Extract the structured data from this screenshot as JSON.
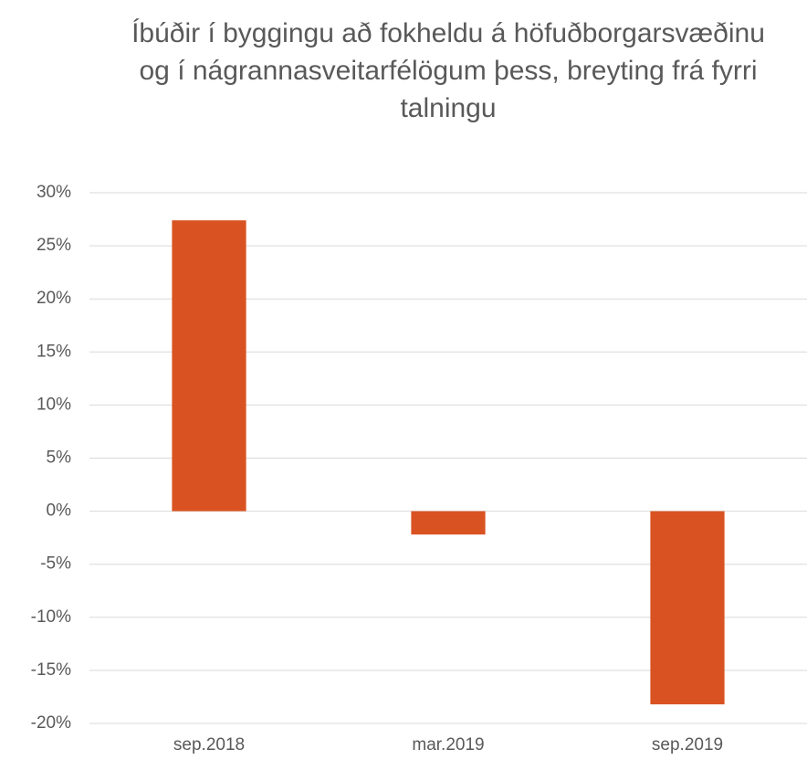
{
  "chart_data": {
    "type": "bar",
    "title": "Íbúðir í byggingu að fokheldu á höfuðborgarsvæðinu og í nágrannasveitarfélögum þess, breyting frá fyrri talningu",
    "categories": [
      "sep.2018",
      "mar.2019",
      "sep.2019"
    ],
    "values": [
      27.4,
      -2.2,
      -18.2
    ],
    "color": "#d95322",
    "ylim": [
      -20,
      30
    ],
    "yticks": [
      {
        "value": -20,
        "label": "-20%"
      },
      {
        "value": -15,
        "label": "-15%"
      },
      {
        "value": -10,
        "label": "-10%"
      },
      {
        "value": -5,
        "label": "-5%"
      },
      {
        "value": 0,
        "label": "0%"
      },
      {
        "value": 5,
        "label": "5%"
      },
      {
        "value": 10,
        "label": "10%"
      },
      {
        "value": 15,
        "label": "15%"
      },
      {
        "value": 20,
        "label": "20%"
      },
      {
        "value": 25,
        "label": "25%"
      },
      {
        "value": 30,
        "label": "30%"
      }
    ],
    "grid": true
  }
}
